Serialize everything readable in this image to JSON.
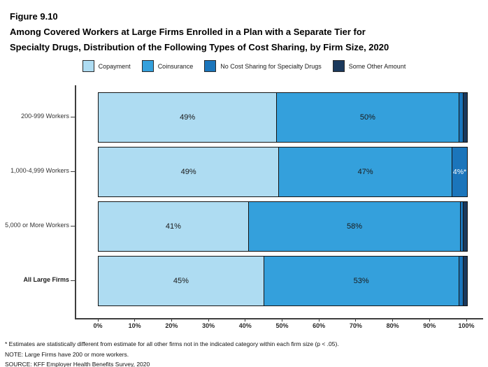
{
  "header": {
    "figure_label": "Figure 9.10",
    "title_line1": "Among Covered Workers at Large Firms Enrolled in a Plan with a Separate Tier for",
    "title_line2": "Specialty Drugs, Distribution of the Following Types of Cost Sharing, by Firm Size, 2020"
  },
  "chart_data": {
    "type": "bar",
    "orientation": "horizontal",
    "stacked": true,
    "grid": false,
    "legend_position": "top",
    "xlim": [
      0,
      100
    ],
    "x_ticks": [
      "0%",
      "10%",
      "20%",
      "30%",
      "40%",
      "50%",
      "60%",
      "70%",
      "80%",
      "90%",
      "100%"
    ],
    "categories": [
      {
        "label": "200-999 Workers",
        "bold": false
      },
      {
        "label": "1,000-4,999 Workers",
        "bold": false
      },
      {
        "label": "5,000 or More Workers",
        "bold": false
      },
      {
        "label": "All Large Firms",
        "bold": true
      }
    ],
    "series": [
      {
        "name": "Copayment",
        "color": "#AEDCF2",
        "label_color": "#1a1a1a",
        "values": [
          49,
          49,
          41,
          45
        ],
        "labels": [
          "49%",
          "49%",
          "41%",
          "45%"
        ]
      },
      {
        "name": "Coinsurance",
        "color": "#34A0DC",
        "label_color": "#1a1a1a",
        "values": [
          50,
          47,
          58,
          53
        ],
        "labels": [
          "50%",
          "47%",
          "58%",
          "53%"
        ]
      },
      {
        "name": "No Cost Sharing for Specialty Drugs",
        "color": "#1B75BB",
        "label_color": "#ffffff",
        "values": [
          1,
          4,
          0.5,
          1
        ],
        "labels": [
          "",
          "4%*",
          "",
          ""
        ]
      },
      {
        "name": "Some Other Amount",
        "color": "#1B395C",
        "label_color": "#ffffff",
        "values": [
          1,
          0,
          1,
          1
        ],
        "labels": [
          "",
          "",
          "",
          ""
        ]
      }
    ]
  },
  "footnotes": [
    "* Estimates are statistically different from estimate for all other firms not in the indicated category within each firm size (p < .05).",
    "NOTE: Large Firms have 200 or more workers.",
    "SOURCE: KFF Employer Health Benefits Survey, 2020"
  ]
}
